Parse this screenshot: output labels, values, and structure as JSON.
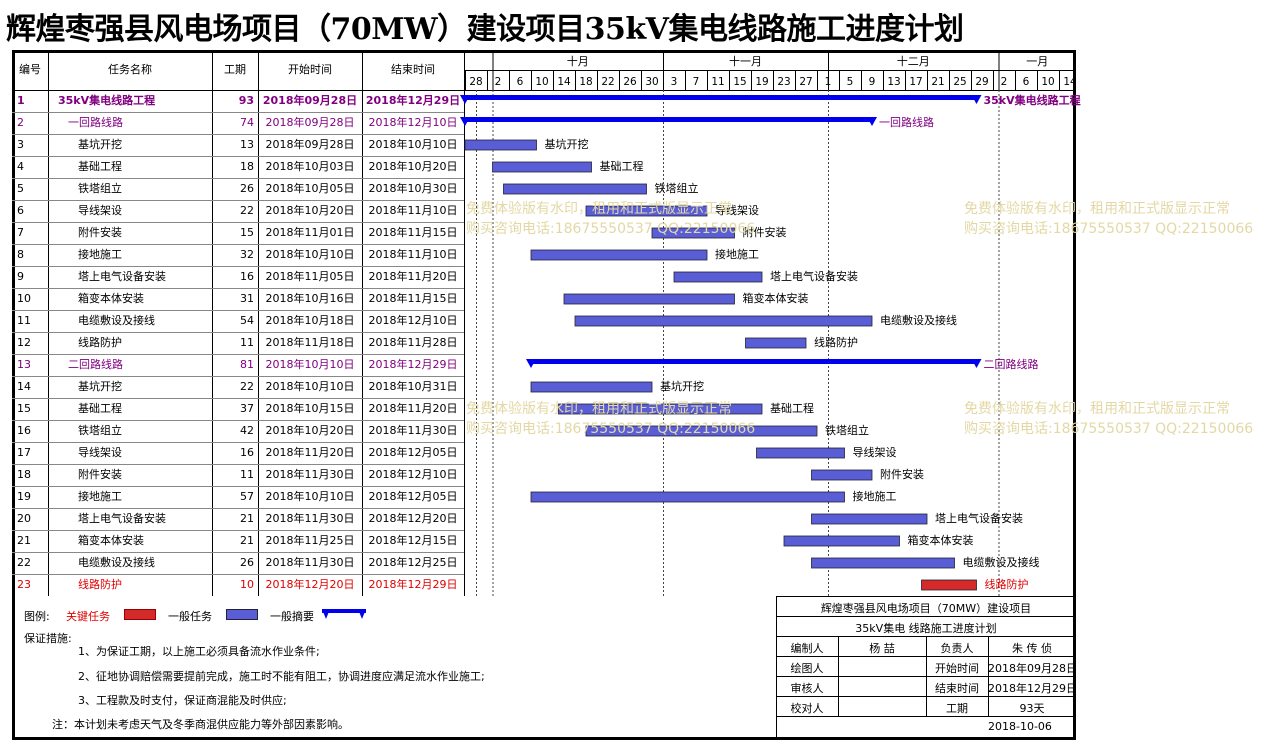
{
  "title": "辉煌枣强县风电场项目（70MW）建设项目35kV集电线路施工进度计划",
  "headers": {
    "id": "编号",
    "name": "任务名称",
    "duration": "工期",
    "start": "开始时间",
    "end": "结束时间"
  },
  "months": [
    {
      "label": "十月"
    },
    {
      "label": "十一月"
    },
    {
      "label": "十二月"
    },
    {
      "label": "一月"
    }
  ],
  "day_ticks": [
    "28",
    "2",
    "6",
    "10",
    "14",
    "18",
    "22",
    "26",
    "30",
    "3",
    "7",
    "11",
    "15",
    "19",
    "23",
    "27",
    "1",
    "5",
    "9",
    "13",
    "17",
    "21",
    "25",
    "29",
    "2",
    "6",
    "10",
    "14"
  ],
  "tasks": [
    {
      "id": "1",
      "name": "35kV集电线路工程",
      "duration": "93",
      "start": "2018年09月28日",
      "end": "2018年12月29日",
      "type": "summary",
      "level": 0,
      "s": 0,
      "e": 92
    },
    {
      "id": "2",
      "name": "一回路线路",
      "duration": "74",
      "start": "2018年09月28日",
      "end": "2018年12月10日",
      "type": "summary",
      "level": 1,
      "s": 0,
      "e": 73
    },
    {
      "id": "3",
      "name": "基坑开挖",
      "duration": "13",
      "start": "2018年09月28日",
      "end": "2018年10月10日",
      "type": "normal",
      "level": 2,
      "s": 0,
      "e": 12
    },
    {
      "id": "4",
      "name": "基础工程",
      "duration": "18",
      "start": "2018年10月03日",
      "end": "2018年10月20日",
      "type": "normal",
      "level": 2,
      "s": 5,
      "e": 22
    },
    {
      "id": "5",
      "name": "铁塔组立",
      "duration": "26",
      "start": "2018年10月05日",
      "end": "2018年10月30日",
      "type": "normal",
      "level": 2,
      "s": 7,
      "e": 32
    },
    {
      "id": "6",
      "name": "导线架设",
      "duration": "22",
      "start": "2018年10月20日",
      "end": "2018年11月10日",
      "type": "normal",
      "level": 2,
      "s": 22,
      "e": 43
    },
    {
      "id": "7",
      "name": "附件安装",
      "duration": "15",
      "start": "2018年11月01日",
      "end": "2018年11月15日",
      "type": "normal",
      "level": 2,
      "s": 34,
      "e": 48
    },
    {
      "id": "8",
      "name": "接地施工",
      "duration": "32",
      "start": "2018年10月10日",
      "end": "2018年11月10日",
      "type": "normal",
      "level": 2,
      "s": 12,
      "e": 43
    },
    {
      "id": "9",
      "name": "塔上电气设备安装",
      "duration": "16",
      "start": "2018年11月05日",
      "end": "2018年11月20日",
      "type": "normal",
      "level": 2,
      "s": 38,
      "e": 53
    },
    {
      "id": "10",
      "name": "箱变本体安装",
      "duration": "31",
      "start": "2018年10月16日",
      "end": "2018年11月15日",
      "type": "normal",
      "level": 2,
      "s": 18,
      "e": 48
    },
    {
      "id": "11",
      "name": "电缆敷设及接线",
      "duration": "54",
      "start": "2018年10月18日",
      "end": "2018年12月10日",
      "type": "normal",
      "level": 2,
      "s": 20,
      "e": 73
    },
    {
      "id": "12",
      "name": "线路防护",
      "duration": "11",
      "start": "2018年11月18日",
      "end": "2018年11月28日",
      "type": "normal",
      "level": 2,
      "s": 51,
      "e": 61
    },
    {
      "id": "13",
      "name": "二回路线路",
      "duration": "81",
      "start": "2018年10月10日",
      "end": "2018年12月29日",
      "type": "summary",
      "level": 1,
      "s": 12,
      "e": 92
    },
    {
      "id": "14",
      "name": "基坑开挖",
      "duration": "22",
      "start": "2018年10月10日",
      "end": "2018年10月31日",
      "type": "normal",
      "level": 2,
      "s": 12,
      "e": 33
    },
    {
      "id": "15",
      "name": "基础工程",
      "duration": "37",
      "start": "2018年10月15日",
      "end": "2018年11月20日",
      "type": "normal",
      "level": 2,
      "s": 17,
      "e": 53
    },
    {
      "id": "16",
      "name": "铁塔组立",
      "duration": "42",
      "start": "2018年10月20日",
      "end": "2018年11月30日",
      "type": "normal",
      "level": 2,
      "s": 22,
      "e": 63
    },
    {
      "id": "17",
      "name": "导线架设",
      "duration": "16",
      "start": "2018年11月20日",
      "end": "2018年12月05日",
      "type": "normal",
      "level": 2,
      "s": 53,
      "e": 68
    },
    {
      "id": "18",
      "name": "附件安装",
      "duration": "11",
      "start": "2018年11月30日",
      "end": "2018年12月10日",
      "type": "normal",
      "level": 2,
      "s": 63,
      "e": 73
    },
    {
      "id": "19",
      "name": "接地施工",
      "duration": "57",
      "start": "2018年10月10日",
      "end": "2018年12月05日",
      "type": "normal",
      "level": 2,
      "s": 12,
      "e": 68
    },
    {
      "id": "20",
      "name": "塔上电气设备安装",
      "duration": "21",
      "start": "2018年11月30日",
      "end": "2018年12月20日",
      "type": "normal",
      "level": 2,
      "s": 63,
      "e": 83
    },
    {
      "id": "21",
      "name": "箱变本体安装",
      "duration": "21",
      "start": "2018年11月25日",
      "end": "2018年12月15日",
      "type": "normal",
      "level": 2,
      "s": 58,
      "e": 78
    },
    {
      "id": "22",
      "name": "电缆敷设及接线",
      "duration": "26",
      "start": "2018年11月30日",
      "end": "2018年12月25日",
      "type": "normal",
      "level": 2,
      "s": 63,
      "e": 88
    },
    {
      "id": "23",
      "name": "线路防护",
      "duration": "10",
      "start": "2018年12月20日",
      "end": "2018年12月29日",
      "type": "critical",
      "level": 2,
      "s": 83,
      "e": 92
    }
  ],
  "legend": {
    "label": "图例:",
    "critical": "关键任务",
    "normal": "一般任务",
    "summary": "一般摘要"
  },
  "measures": {
    "label": "保证措施:",
    "items": [
      "1、为保证工期，以上施工必须具备流水作业条件;",
      "2、征地协调赔偿需要提前完成，施工时不能有阻工，协调进度应满足流水作业施工;",
      "3、工程款及时支付，保证商混能及时供应;"
    ],
    "note": "注：本计划未考虑天气及冬季商混供应能力等外部因素影响。"
  },
  "info": {
    "project": "辉煌枣强县风电场项目（70MW）建设项目",
    "subtitle": "35kV集电 线路施工进度计划",
    "compiler_label": "编制人",
    "compiler": "杨 喆",
    "owner_label": "负责人",
    "owner": "朱 传 侦",
    "drafter_label": "绘图人",
    "start_label": "开始时间",
    "start": "2018年09月28日",
    "reviewer_label": "审核人",
    "end_label": "结束时间",
    "end": "2018年12月29日",
    "checker_label": "校对人",
    "duration_label": "工期",
    "duration": "93天",
    "date": "2018-10-06"
  },
  "watermark": {
    "line1": "免费体验版有水印，租用和正式版显示正常",
    "line2": "购买咨询电话:18675550537 QQ:22150066"
  },
  "colors": {
    "summary": "#0000ee",
    "normal_bar": "#5a5ed6",
    "critical_bar": "#d42a2a",
    "summary_text": "#800080",
    "critical_text": "#e00000",
    "watermark": "#e3d8a4"
  }
}
